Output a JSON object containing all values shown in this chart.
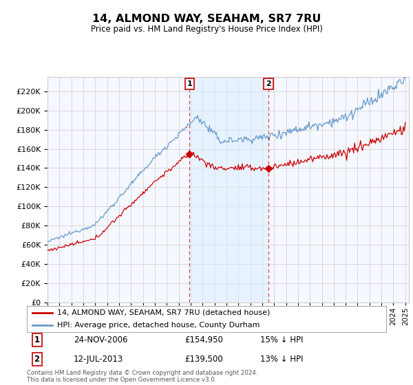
{
  "title": "14, ALMOND WAY, SEAHAM, SR7 7RU",
  "subtitle": "Price paid vs. HM Land Registry's House Price Index (HPI)",
  "y_ticks": [
    0,
    20000,
    40000,
    60000,
    80000,
    100000,
    120000,
    140000,
    160000,
    180000,
    200000,
    220000
  ],
  "y_tick_labels": [
    "£0",
    "£20K",
    "£40K",
    "£60K",
    "£80K",
    "£100K",
    "£120K",
    "£140K",
    "£160K",
    "£180K",
    "£200K",
    "£220K"
  ],
  "ylim": [
    0,
    235000
  ],
  "marker1_year": 2006.9,
  "marker1_label": "1",
  "marker1_date": "24-NOV-2006",
  "marker1_price": "£154,950",
  "marker1_hpi": "15% ↓ HPI",
  "marker2_year": 2013.53,
  "marker2_label": "2",
  "marker2_date": "12-JUL-2013",
  "marker2_price": "£139,500",
  "marker2_hpi": "13% ↓ HPI",
  "legend_line1": "14, ALMOND WAY, SEAHAM, SR7 7RU (detached house)",
  "legend_line2": "HPI: Average price, detached house, County Durham",
  "footer": "Contains HM Land Registry data © Crown copyright and database right 2024.\nThis data is licensed under the Open Government Licence v3.0.",
  "red_color": "#cc0000",
  "blue_color": "#6699cc",
  "fill_color": "#ddeeff",
  "background_color": "#f5f8ff",
  "grid_color": "#cccccc"
}
